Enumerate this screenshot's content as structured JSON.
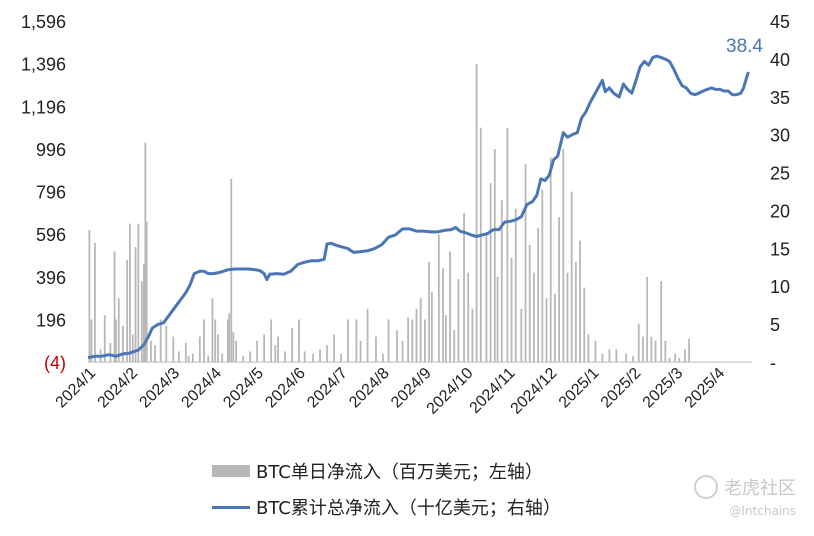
{
  "chart_data": {
    "type": "bar+line",
    "title": "",
    "left_axis": {
      "ticks": [
        "(4)",
        "196",
        "396",
        "596",
        "796",
        "996",
        "1,196",
        "1,396",
        "1,596"
      ],
      "min": -4,
      "max": 1596,
      "negative_color": "#c00000"
    },
    "right_axis": {
      "ticks": [
        "-",
        "5",
        "10",
        "15",
        "20",
        "25",
        "30",
        "35",
        "40",
        "45"
      ],
      "min": 0,
      "max": 45
    },
    "x_ticks": [
      "2024/1",
      "2024/2",
      "2024/3",
      "2024/4",
      "2024/5",
      "2024/6",
      "2024/7",
      "2024/8",
      "2024/9",
      "2024/10",
      "2024/11",
      "2024/12",
      "2025/1",
      "2025/2",
      "2025/3",
      "2025/4"
    ],
    "series": [
      {
        "name": "BTC单日净流入（百万美元；左轴）",
        "type": "bar",
        "color": "#b8b8b8",
        "axis": "left",
        "values": [
          [
            0.1,
            620
          ],
          [
            0.25,
            200
          ],
          [
            0.5,
            560
          ],
          [
            0.9,
            60
          ],
          [
            1.2,
            220
          ],
          [
            1.6,
            90
          ],
          [
            1.9,
            520
          ],
          [
            2.0,
            200
          ],
          [
            2.2,
            300
          ],
          [
            2.5,
            170
          ],
          [
            2.8,
            480
          ],
          [
            3.0,
            650
          ],
          [
            3.2,
            130
          ],
          [
            3.4,
            540
          ],
          [
            3.6,
            650
          ],
          [
            3.85,
            380
          ],
          [
            4.0,
            460
          ],
          [
            4.1,
            1030
          ],
          [
            4.2,
            660
          ],
          [
            4.5,
            100
          ],
          [
            4.8,
            80
          ],
          [
            5.2,
            200
          ],
          [
            5.6,
            170
          ],
          [
            6.1,
            120
          ],
          [
            6.5,
            50
          ],
          [
            7.0,
            90
          ],
          [
            7.2,
            30
          ],
          [
            7.5,
            40
          ],
          [
            8.0,
            120
          ],
          [
            8.3,
            200
          ],
          [
            8.6,
            30
          ],
          [
            8.9,
            300
          ],
          [
            9.1,
            200
          ],
          [
            9.3,
            130
          ],
          [
            9.6,
            40
          ],
          [
            10.0,
            200
          ],
          [
            10.1,
            230
          ],
          [
            10.25,
            860
          ],
          [
            10.4,
            140
          ],
          [
            10.6,
            100
          ],
          [
            11.1,
            30
          ],
          [
            11.6,
            50
          ],
          [
            12.1,
            100
          ],
          [
            12.6,
            130
          ],
          [
            13.1,
            200
          ],
          [
            13.4,
            80
          ],
          [
            13.6,
            120
          ],
          [
            14.1,
            50
          ],
          [
            14.6,
            160
          ],
          [
            15.1,
            200
          ],
          [
            15.5,
            50
          ],
          [
            16.1,
            40
          ],
          [
            16.6,
            60
          ],
          [
            17.1,
            80
          ],
          [
            17.6,
            130
          ],
          [
            18.1,
            40
          ],
          [
            18.6,
            200
          ],
          [
            19.2,
            200
          ],
          [
            19.5,
            100
          ],
          [
            20.0,
            250
          ],
          [
            20.6,
            120
          ],
          [
            21.1,
            40
          ],
          [
            21.5,
            200
          ],
          [
            22.1,
            150
          ],
          [
            22.5,
            100
          ],
          [
            22.9,
            210
          ],
          [
            23.2,
            200
          ],
          [
            23.5,
            250
          ],
          [
            23.8,
            300
          ],
          [
            24.1,
            200
          ],
          [
            24.4,
            470
          ],
          [
            24.6,
            330
          ],
          [
            25.1,
            600
          ],
          [
            25.4,
            440
          ],
          [
            25.6,
            220
          ],
          [
            25.9,
            520
          ],
          [
            26.2,
            150
          ],
          [
            26.5,
            390
          ],
          [
            26.9,
            700
          ],
          [
            27.2,
            420
          ],
          [
            27.5,
            250
          ],
          [
            27.8,
            1400
          ],
          [
            28.1,
            1100
          ],
          [
            28.5,
            600
          ],
          [
            28.8,
            840
          ],
          [
            29.1,
            1000
          ],
          [
            29.3,
            400
          ],
          [
            29.6,
            760
          ],
          [
            30.0,
            1100
          ],
          [
            30.3,
            490
          ],
          [
            30.6,
            720
          ],
          [
            31.0,
            250
          ],
          [
            31.3,
            930
          ],
          [
            31.6,
            550
          ],
          [
            31.9,
            420
          ],
          [
            32.2,
            630
          ],
          [
            32.5,
            810
          ],
          [
            32.8,
            300
          ],
          [
            33.1,
            960
          ],
          [
            33.4,
            320
          ],
          [
            33.7,
            680
          ],
          [
            34.0,
            1000
          ],
          [
            34.3,
            420
          ],
          [
            34.6,
            800
          ],
          [
            34.9,
            470
          ],
          [
            35.2,
            570
          ],
          [
            35.5,
            350
          ],
          [
            35.8,
            130
          ],
          [
            36.3,
            100
          ],
          [
            36.8,
            40
          ],
          [
            37.3,
            60
          ],
          [
            37.8,
            60
          ],
          [
            38.5,
            40
          ],
          [
            39.0,
            30
          ],
          [
            39.4,
            180
          ],
          [
            39.7,
            120
          ],
          [
            40.0,
            400
          ],
          [
            40.3,
            120
          ],
          [
            40.6,
            100
          ],
          [
            41.0,
            380
          ],
          [
            41.3,
            100
          ],
          [
            41.6,
            20
          ],
          [
            42.0,
            40
          ],
          [
            42.3,
            20
          ],
          [
            42.7,
            60
          ],
          [
            43.0,
            110
          ]
        ]
      },
      {
        "name": "BTC累计总净流入（十亿美元；右轴）",
        "type": "line",
        "color": "#4a76b5",
        "axis": "right",
        "end_label": "38.4",
        "values": [
          [
            0.0,
            0.7
          ],
          [
            0.5,
            0.9
          ],
          [
            1.0,
            0.9
          ],
          [
            1.5,
            1.1
          ],
          [
            2.0,
            0.9
          ],
          [
            2.5,
            1.2
          ],
          [
            3.0,
            1.3
          ],
          [
            3.3,
            1.5
          ],
          [
            3.6,
            1.7
          ],
          [
            4.0,
            2.4
          ],
          [
            4.3,
            3.4
          ],
          [
            4.6,
            4.6
          ],
          [
            5.0,
            5.1
          ],
          [
            5.4,
            5.3
          ],
          [
            5.8,
            6.3
          ],
          [
            6.2,
            7.3
          ],
          [
            6.6,
            8.3
          ],
          [
            7.0,
            9.3
          ],
          [
            7.3,
            10.3
          ],
          [
            7.6,
            11.8
          ],
          [
            8.0,
            12.1
          ],
          [
            8.3,
            12.1
          ],
          [
            8.6,
            11.8
          ],
          [
            9.0,
            11.8
          ],
          [
            9.5,
            12.0
          ],
          [
            10.0,
            12.3
          ],
          [
            10.5,
            12.4
          ],
          [
            11.0,
            12.4
          ],
          [
            11.5,
            12.4
          ],
          [
            12.0,
            12.3
          ],
          [
            12.3,
            12.2
          ],
          [
            12.6,
            11.8
          ],
          [
            12.8,
            11.0
          ],
          [
            13.0,
            11.7
          ],
          [
            13.5,
            11.8
          ],
          [
            14.0,
            11.7
          ],
          [
            14.5,
            12.1
          ],
          [
            15.0,
            13.0
          ],
          [
            15.5,
            13.3
          ],
          [
            16.0,
            13.5
          ],
          [
            16.5,
            13.5
          ],
          [
            16.9,
            13.7
          ],
          [
            17.1,
            15.7
          ],
          [
            17.4,
            15.8
          ],
          [
            17.8,
            15.5
          ],
          [
            18.2,
            15.3
          ],
          [
            18.6,
            15.1
          ],
          [
            19.0,
            14.6
          ],
          [
            19.5,
            14.7
          ],
          [
            20.0,
            14.8
          ],
          [
            20.5,
            15.1
          ],
          [
            21.0,
            15.6
          ],
          [
            21.5,
            16.6
          ],
          [
            22.0,
            16.9
          ],
          [
            22.5,
            17.7
          ],
          [
            23.0,
            17.7
          ],
          [
            23.5,
            17.4
          ],
          [
            24.0,
            17.4
          ],
          [
            24.5,
            17.3
          ],
          [
            25.0,
            17.3
          ],
          [
            25.5,
            17.5
          ],
          [
            26.0,
            17.6
          ],
          [
            26.3,
            17.9
          ],
          [
            26.6,
            17.4
          ],
          [
            27.0,
            17.2
          ],
          [
            27.4,
            16.9
          ],
          [
            27.8,
            16.7
          ],
          [
            28.2,
            16.9
          ],
          [
            28.6,
            17.1
          ],
          [
            29.0,
            17.6
          ],
          [
            29.4,
            17.6
          ],
          [
            29.8,
            18.6
          ],
          [
            30.2,
            18.7
          ],
          [
            30.6,
            18.9
          ],
          [
            31.0,
            19.3
          ],
          [
            31.4,
            20.9
          ],
          [
            31.8,
            21.3
          ],
          [
            32.1,
            22.1
          ],
          [
            32.4,
            24.3
          ],
          [
            32.7,
            24.1
          ],
          [
            33.0,
            24.8
          ],
          [
            33.3,
            26.8
          ],
          [
            33.6,
            27.3
          ],
          [
            34.0,
            30.4
          ],
          [
            34.3,
            29.8
          ],
          [
            34.6,
            30.1
          ],
          [
            35.0,
            30.4
          ],
          [
            35.3,
            32.3
          ],
          [
            35.6,
            33.1
          ],
          [
            35.9,
            34.3
          ],
          [
            36.2,
            35.3
          ],
          [
            36.5,
            36.3
          ],
          [
            36.8,
            37.3
          ],
          [
            37.0,
            35.8
          ],
          [
            37.3,
            36.3
          ],
          [
            37.6,
            35.6
          ],
          [
            38.0,
            35.1
          ],
          [
            38.3,
            36.8
          ],
          [
            38.6,
            36.1
          ],
          [
            38.9,
            35.6
          ],
          [
            39.2,
            37.3
          ],
          [
            39.5,
            39.1
          ],
          [
            39.8,
            39.8
          ],
          [
            40.1,
            39.3
          ],
          [
            40.4,
            40.3
          ],
          [
            40.7,
            40.5
          ],
          [
            41.0,
            40.3
          ],
          [
            41.3,
            40.1
          ],
          [
            41.6,
            39.8
          ],
          [
            41.9,
            38.8
          ],
          [
            42.2,
            37.6
          ],
          [
            42.5,
            36.6
          ],
          [
            42.8,
            36.3
          ],
          [
            43.1,
            35.6
          ],
          [
            43.4,
            35.4
          ],
          [
            43.7,
            35.6
          ],
          [
            44.0,
            35.9
          ],
          [
            44.3,
            36.1
          ],
          [
            44.6,
            36.3
          ],
          [
            44.9,
            36.1
          ],
          [
            45.2,
            36.1
          ],
          [
            45.5,
            35.9
          ],
          [
            45.8,
            35.9
          ],
          [
            46.1,
            35.4
          ],
          [
            46.4,
            35.4
          ],
          [
            46.7,
            35.6
          ],
          [
            46.9,
            36.3
          ],
          [
            47.1,
            37.6
          ],
          [
            47.25,
            38.4
          ]
        ]
      }
    ],
    "x_range": [
      0,
      47.5
    ],
    "legend_position": "bottom"
  },
  "watermark": {
    "text": "老虎社区",
    "sub": "@Intchains"
  }
}
